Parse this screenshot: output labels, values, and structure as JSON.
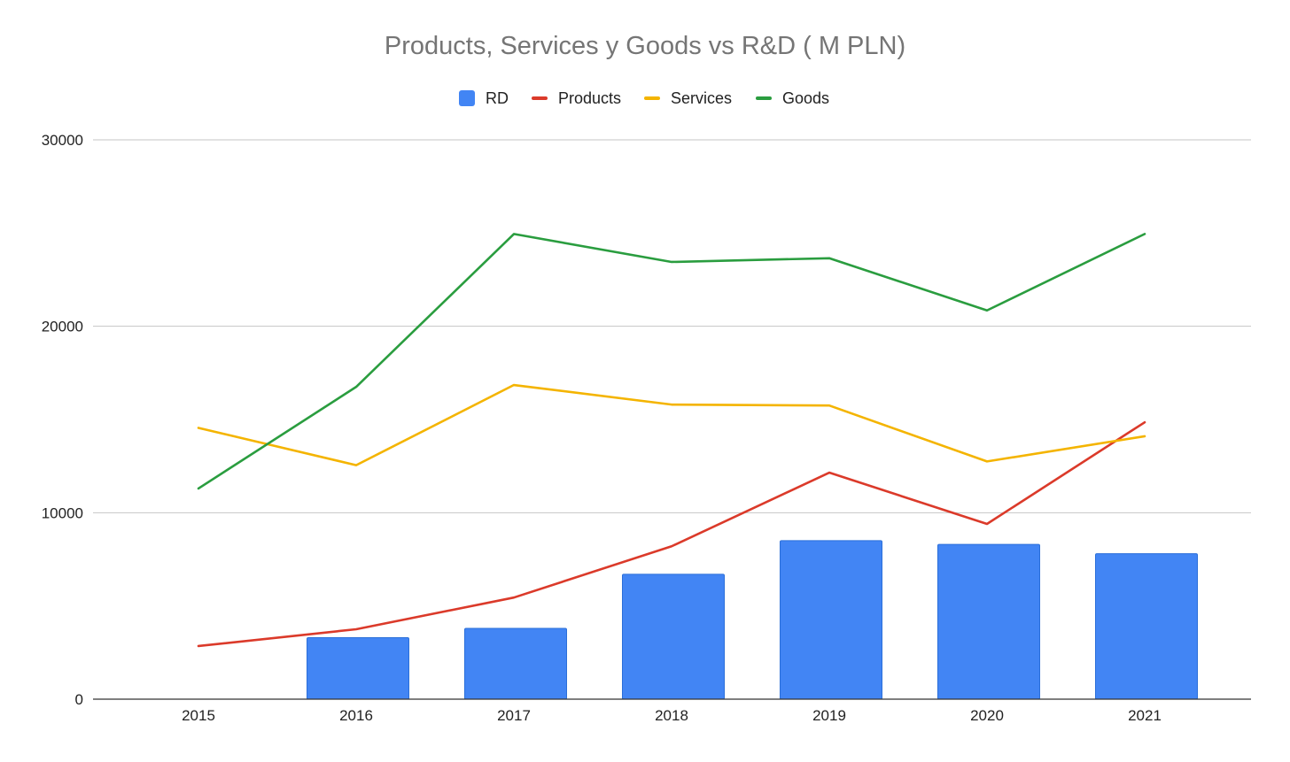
{
  "chart_data": {
    "type": "bar",
    "title": "Products, Services y Goods vs R&D ( M PLN)",
    "xlabel": "",
    "ylabel": "",
    "categories": [
      "2015",
      "2016",
      "2017",
      "2018",
      "2019",
      "2020",
      "2021"
    ],
    "ylim": [
      0,
      30000
    ],
    "yticks": [
      "0",
      "10000",
      "20000",
      "30000"
    ],
    "grid": true,
    "legend_position": "top",
    "series": [
      {
        "name": "RD",
        "type": "bar",
        "color": "#4285F4",
        "values": [
          0,
          3300,
          3800,
          6700,
          8500,
          8300,
          7800
        ]
      },
      {
        "name": "Products",
        "type": "line",
        "color": "#DB3A2A",
        "values": [
          2850,
          3750,
          5450,
          8200,
          12150,
          9400,
          14850
        ]
      },
      {
        "name": "Services",
        "type": "line",
        "color": "#F4B400",
        "values": [
          14550,
          12550,
          16850,
          15800,
          15750,
          12750,
          14100
        ]
      },
      {
        "name": "Goods",
        "type": "line",
        "color": "#2A9D3F",
        "values": [
          11300,
          16750,
          24950,
          23450,
          23650,
          20850,
          24950
        ]
      }
    ]
  }
}
